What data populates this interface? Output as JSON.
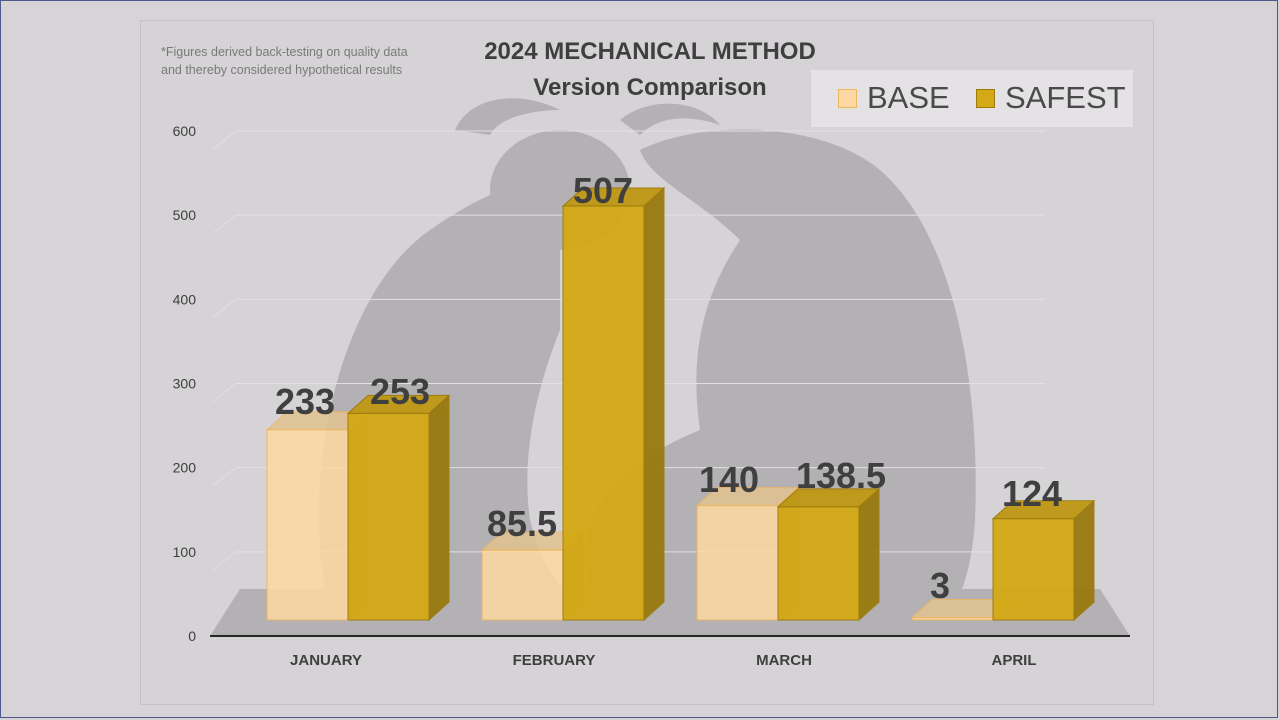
{
  "footnote": {
    "line1": "*Figures derived back-testing on quality data",
    "line2": "and thereby considered hypothetical results"
  },
  "title": {
    "line1": "2024 MECHANICAL METHOD",
    "line2": "Version Comparison"
  },
  "legend": {
    "position": "top-right",
    "items": [
      {
        "label": "BASE",
        "color": "#fcd9a2"
      },
      {
        "label": "SAFEST",
        "color": "#d4a915"
      }
    ]
  },
  "colors": {
    "base_face": "#fcd9a2",
    "base_edge": "#f0b65a",
    "safest_face": "#d4a915",
    "safest_edge": "#9c7a0c",
    "floor": "#b3b1b3",
    "axis": "#262626",
    "label": "#3f3f3f"
  },
  "chart_data": {
    "type": "bar",
    "style": "3d-clustered-column",
    "categories": [
      "JANUARY",
      "FEBRUARY",
      "MARCH",
      "APRIL"
    ],
    "series": [
      {
        "name": "BASE",
        "values": [
          233,
          85.5,
          140,
          3
        ],
        "labels": [
          "233",
          "85.5",
          "140",
          "3"
        ]
      },
      {
        "name": "SAFEST",
        "values": [
          253,
          507,
          138.5,
          124
        ],
        "labels": [
          "253",
          "507",
          "138.5",
          "124"
        ]
      }
    ],
    "yticks": [
      "0",
      "100",
      "200",
      "300",
      "400",
      "500",
      "600"
    ],
    "ylim": [
      0,
      600
    ],
    "grid": true,
    "xlabel": "",
    "ylabel": ""
  }
}
